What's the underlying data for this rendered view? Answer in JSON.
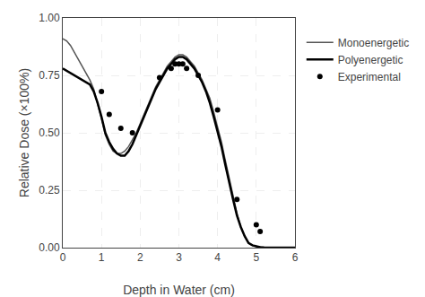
{
  "chart_data": {
    "type": "line",
    "xlabel": "Depth in Water (cm)",
    "ylabel": "Relative Dose (×100%)",
    "xlim": [
      0,
      6
    ],
    "ylim": [
      0,
      1.0
    ],
    "xticks": [
      0,
      1,
      2,
      3,
      4,
      5,
      6
    ],
    "yticks": [
      {
        "value": 0,
        "label": "0.00"
      },
      {
        "value": 0.25,
        "label": "0.25"
      },
      {
        "value": 0.5,
        "label": "0.50"
      },
      {
        "value": 0.75,
        "label": "0.75"
      },
      {
        "value": 1,
        "label": "1.00"
      }
    ],
    "grid": true,
    "legend": "right",
    "series": [
      {
        "name": "Monoenergetic",
        "type": "line",
        "line_style": "solid",
        "color": "#555555",
        "x": [
          0.0,
          0.1,
          0.2,
          0.3,
          0.4,
          0.5,
          0.6,
          0.7,
          0.8,
          0.9,
          1.0,
          1.1,
          1.2,
          1.3,
          1.4,
          1.5,
          1.6,
          1.7,
          1.8,
          1.9,
          2.0,
          2.1,
          2.2,
          2.3,
          2.4,
          2.5,
          2.6,
          2.7,
          2.8,
          2.9,
          3.0,
          3.1,
          3.2,
          3.3,
          3.4,
          3.5,
          3.6,
          3.7,
          3.8,
          3.9,
          4.0,
          4.1,
          4.2,
          4.3,
          4.4,
          4.5,
          4.6,
          4.7,
          4.8,
          4.9,
          5.0,
          5.1,
          5.2,
          5.3,
          5.4,
          5.5,
          5.6,
          5.7,
          5.8,
          5.9,
          6.0
        ],
        "values": [
          0.91,
          0.9,
          0.88,
          0.85,
          0.82,
          0.79,
          0.76,
          0.73,
          0.69,
          0.63,
          0.56,
          0.49,
          0.45,
          0.42,
          0.41,
          0.41,
          0.42,
          0.44,
          0.47,
          0.5,
          0.54,
          0.58,
          0.62,
          0.66,
          0.7,
          0.73,
          0.76,
          0.79,
          0.81,
          0.83,
          0.84,
          0.84,
          0.83,
          0.81,
          0.79,
          0.76,
          0.73,
          0.69,
          0.65,
          0.59,
          0.53,
          0.46,
          0.38,
          0.3,
          0.22,
          0.15,
          0.09,
          0.05,
          0.02,
          0.01,
          0.005,
          0.002,
          0.001,
          0.0,
          0.0,
          0.0,
          0.0,
          0.0,
          0.0,
          0.0,
          0.0
        ]
      },
      {
        "name": "Polyenergetic",
        "type": "line",
        "line_style": "solid",
        "color": "#000000",
        "x": [
          0.0,
          0.1,
          0.2,
          0.3,
          0.4,
          0.5,
          0.6,
          0.7,
          0.8,
          0.9,
          1.0,
          1.1,
          1.2,
          1.3,
          1.4,
          1.5,
          1.6,
          1.7,
          1.8,
          1.9,
          2.0,
          2.1,
          2.2,
          2.3,
          2.4,
          2.5,
          2.6,
          2.7,
          2.8,
          2.9,
          3.0,
          3.1,
          3.2,
          3.3,
          3.4,
          3.5,
          3.6,
          3.7,
          3.8,
          3.9,
          4.0,
          4.1,
          4.2,
          4.3,
          4.4,
          4.5,
          4.6,
          4.7,
          4.8,
          4.9,
          5.0,
          5.1,
          5.2,
          5.3,
          5.4,
          5.5,
          5.6,
          5.7,
          5.8,
          5.9,
          6.0
        ],
        "values": [
          0.78,
          0.77,
          0.76,
          0.75,
          0.74,
          0.73,
          0.72,
          0.71,
          0.68,
          0.63,
          0.57,
          0.5,
          0.46,
          0.43,
          0.41,
          0.4,
          0.4,
          0.42,
          0.45,
          0.49,
          0.53,
          0.57,
          0.61,
          0.65,
          0.69,
          0.72,
          0.75,
          0.78,
          0.8,
          0.82,
          0.83,
          0.83,
          0.82,
          0.8,
          0.78,
          0.75,
          0.72,
          0.68,
          0.63,
          0.57,
          0.51,
          0.44,
          0.36,
          0.28,
          0.21,
          0.14,
          0.09,
          0.05,
          0.02,
          0.01,
          0.005,
          0.002,
          0.001,
          0.0,
          0.0,
          0.0,
          0.0,
          0.0,
          0.0,
          0.0,
          0.0
        ]
      },
      {
        "name": "Experimental",
        "type": "scatter",
        "marker": "circle",
        "color": "#000000",
        "x": [
          1.0,
          1.2,
          1.5,
          1.8,
          2.5,
          2.8,
          2.9,
          3.0,
          3.1,
          3.2,
          3.5,
          4.0,
          4.5,
          5.0,
          5.1
        ],
        "values": [
          0.68,
          0.58,
          0.52,
          0.5,
          0.74,
          0.78,
          0.8,
          0.8,
          0.8,
          0.78,
          0.75,
          0.6,
          0.21,
          0.1,
          0.07
        ]
      }
    ]
  }
}
